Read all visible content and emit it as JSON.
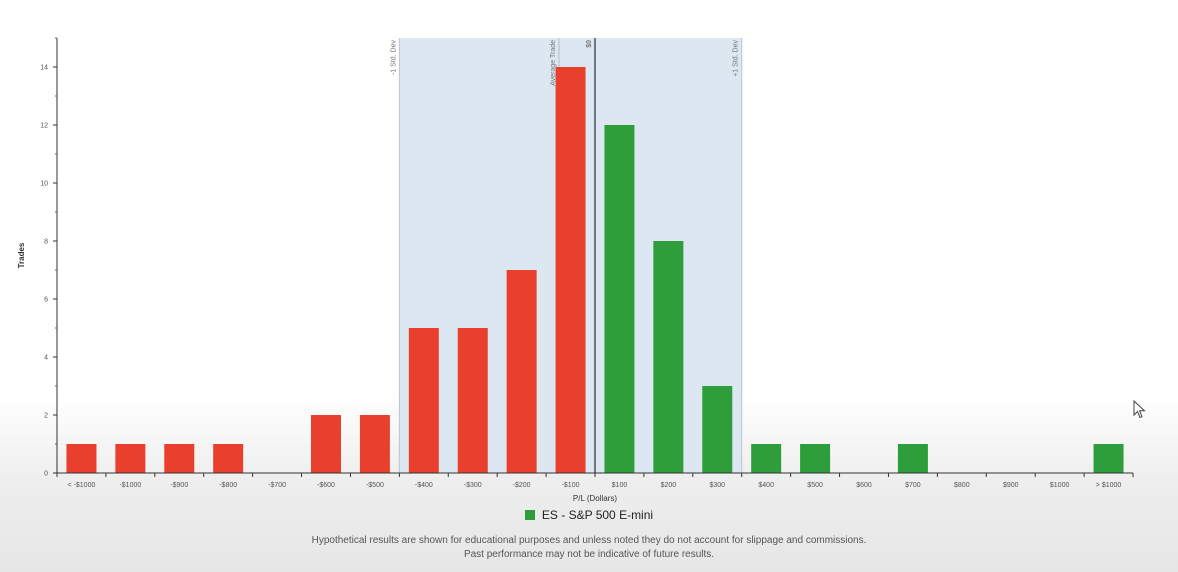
{
  "chart_data": {
    "type": "bar",
    "categories": [
      "< -$1000",
      "-$1000",
      "-$900",
      "-$800",
      "-$700",
      "-$600",
      "-$500",
      "-$400",
      "-$300",
      "-$200",
      "-$100",
      "$100",
      "$200",
      "$300",
      "$400",
      "$500",
      "$600",
      "$700",
      "$800",
      "$900",
      "$1000",
      "> $1000"
    ],
    "values": [
      1,
      1,
      1,
      1,
      0,
      2,
      2,
      5,
      5,
      7,
      14,
      12,
      8,
      3,
      1,
      1,
      0,
      1,
      0,
      0,
      0,
      1
    ],
    "xlabel": "P/L (Dollars)",
    "ylabel": "Trades",
    "ylim": [
      0,
      15
    ],
    "yticks": [
      0,
      2,
      4,
      6,
      8,
      10,
      12,
      14
    ],
    "colors": {
      "loss": "#e8402d",
      "profit": "#2e9e3a",
      "band": "#dce7f1"
    },
    "band_range": [
      "-$400",
      "$300"
    ],
    "annotations": {
      "minus_std": "-1 Std. Dev",
      "plus_std": "+1 Std. Dev",
      "average": "Average Trade",
      "zero": "$0"
    },
    "legend": {
      "label": "ES - S&P 500 E-mini",
      "color": "#2e9e3a"
    }
  },
  "footer": {
    "line1": "Hypothetical results are shown for educational purposes and unless noted they do not account for slippage and commissions.",
    "line2": "Past performance may not be indicative of future results."
  }
}
